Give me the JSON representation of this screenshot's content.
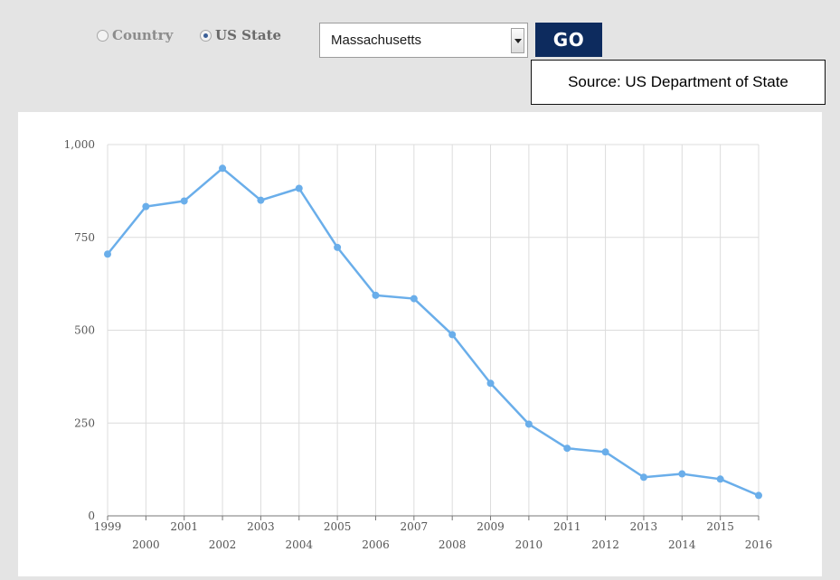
{
  "controls": {
    "radio_country": {
      "label": "Country",
      "selected": false
    },
    "radio_state": {
      "label": "US State",
      "selected": true
    },
    "state_select": {
      "value": "Massachusetts"
    },
    "go_label": "GO",
    "source_text": "Source: US Department of State"
  },
  "colors": {
    "line": "#6aaeea",
    "go_button": "#0d2b5e",
    "grid": "#dcdcdc"
  },
  "chart_data": {
    "type": "line",
    "title": "",
    "xlabel": "",
    "ylabel": "",
    "x": [
      1999,
      2000,
      2001,
      2002,
      2003,
      2004,
      2005,
      2006,
      2007,
      2008,
      2009,
      2010,
      2011,
      2012,
      2013,
      2014,
      2015,
      2016
    ],
    "x_labels": [
      "1999",
      "2000",
      "2001",
      "2002",
      "2003",
      "2004",
      "2005",
      "2006",
      "2007",
      "2008",
      "2009",
      "2010",
      "2011",
      "2012",
      "2013",
      "2014",
      "2015",
      "2016"
    ],
    "series": [
      {
        "values": [
          705,
          833,
          848,
          936,
          850,
          882,
          723,
          594,
          585,
          488,
          357,
          247,
          182,
          172,
          104,
          113,
          99,
          55
        ]
      }
    ],
    "ylim": [
      0,
      1000
    ],
    "yticks": [
      0,
      250,
      500,
      750,
      1000
    ],
    "ytick_labels": [
      "0",
      "250",
      "500",
      "750",
      "1,000"
    ],
    "grid": true,
    "legend": "none"
  }
}
